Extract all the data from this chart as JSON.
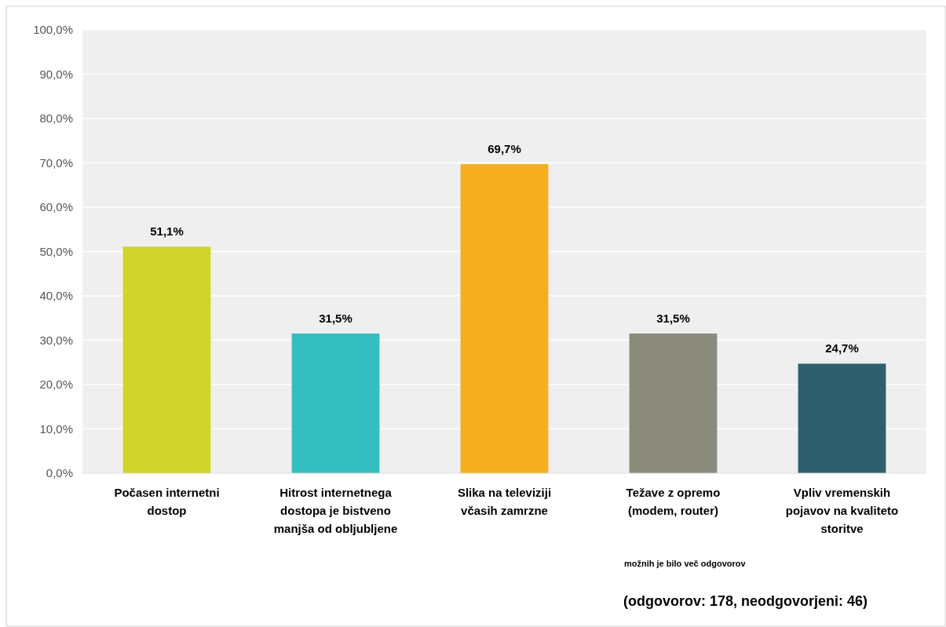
{
  "chart_data": {
    "type": "bar",
    "categories": [
      "Počasen internetni dostop",
      "Hitrost internetnega dostopa je bistveno manjša od obljubljene",
      "Slika na televiziji včasih zamrzne",
      "Težave z opremo (modem, router)",
      "Vpliv vremenskih pojavov na kvaliteto storitve"
    ],
    "values": [
      51.1,
      31.5,
      69.7,
      31.5,
      24.7
    ],
    "colors": [
      "#cfd52a",
      "#34bec0",
      "#f5ae1f",
      "#8a8b7a",
      "#2e5f6e"
    ],
    "value_labels": [
      "51,1%",
      "31,5%",
      "69,7%",
      "31,5%",
      "24,7%"
    ],
    "ylim": [
      0,
      100
    ],
    "yticks": [
      {
        "value": 0,
        "label": "0,0%"
      },
      {
        "value": 10,
        "label": "10,0%"
      },
      {
        "value": 20,
        "label": "20,0%"
      },
      {
        "value": 30,
        "label": "30,0%"
      },
      {
        "value": 40,
        "label": "40,0%"
      },
      {
        "value": 50,
        "label": "50,0%"
      },
      {
        "value": 60,
        "label": "60,0%"
      },
      {
        "value": 70,
        "label": "70,0%"
      },
      {
        "value": 80,
        "label": "80,0%"
      },
      {
        "value": 90,
        "label": "90,0%"
      },
      {
        "value": 100,
        "label": "100,0%"
      }
    ],
    "grid": "y",
    "annotations": [
      "možnih je bilo več odgovorov",
      "(odgovorov: 178, neodgovorjeni: 46)"
    ]
  }
}
